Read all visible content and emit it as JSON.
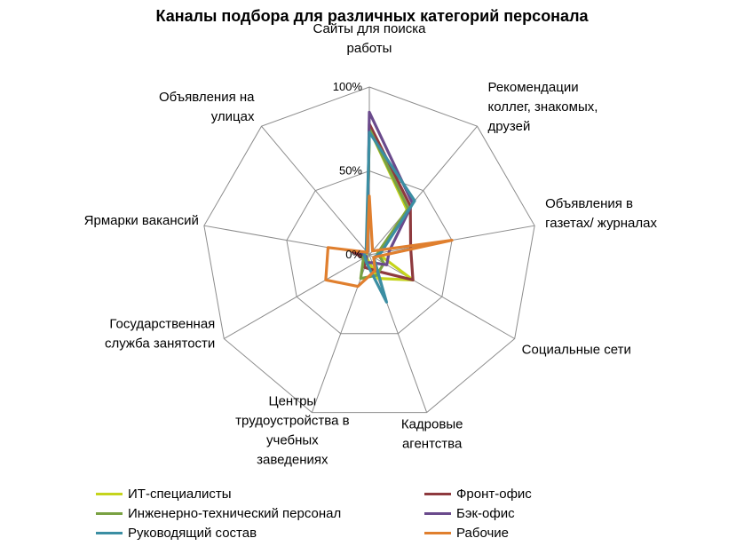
{
  "chart_data": {
    "type": "radar",
    "title": "Каналы подбора для различных категорий персонала",
    "categories": [
      "Сайты для поиска работы",
      "Рекомендации коллег, знакомых, друзей",
      "Объявления в газетах/ журналах",
      "Социальные сети",
      "Кадровые агентства",
      "Центры трудоустройства в учебных заведениях",
      "Государственная служба занятости",
      "Ярмарки вакансий",
      "Объявления на улицах"
    ],
    "category_lines": [
      [
        "Сайты для поиска",
        "работы"
      ],
      [
        "Рекомендации",
        "коллег, знакомых,",
        "друзей"
      ],
      [
        "Объявления в",
        "газетах/ журналах"
      ],
      [
        "Социальные сети"
      ],
      [
        "Кадровые",
        "агентства"
      ],
      [
        "Центры",
        "трудоустройства в",
        "учебных",
        "заведениях"
      ],
      [
        "Государственная",
        "служба занятости"
      ],
      [
        "Ярмарки вакансий"
      ],
      [
        "Объявления на",
        "улицах"
      ]
    ],
    "radial_ticks": [
      "0%",
      "50%",
      "100%"
    ],
    "rlim": [
      0,
      100
    ],
    "grid": true,
    "legend_position": "bottom",
    "series": [
      {
        "name": "ИТ-специалисты",
        "color": "#c5d41c",
        "values": [
          75,
          35,
          5,
          30,
          15,
          3,
          2,
          2,
          2
        ]
      },
      {
        "name": "Фронт-офис",
        "color": "#8e3a3e",
        "values": [
          78,
          38,
          25,
          30,
          10,
          8,
          4,
          10,
          2
        ]
      },
      {
        "name": "Инженерно-технический персонал",
        "color": "#79a142",
        "values": [
          75,
          36,
          5,
          10,
          13,
          15,
          4,
          5,
          2
        ]
      },
      {
        "name": "Бэк-офис",
        "color": "#6a4a8c",
        "values": [
          85,
          40,
          12,
          12,
          5,
          5,
          2,
          5,
          2
        ]
      },
      {
        "name": "Руководящий состав",
        "color": "#3b8ea3",
        "values": [
          73,
          42,
          7,
          3,
          30,
          5,
          3,
          3,
          3
        ]
      },
      {
        "name": "Рабочие",
        "color": "#e07f2e",
        "values": [
          35,
          3,
          50,
          3,
          10,
          20,
          30,
          25,
          2
        ]
      }
    ]
  }
}
